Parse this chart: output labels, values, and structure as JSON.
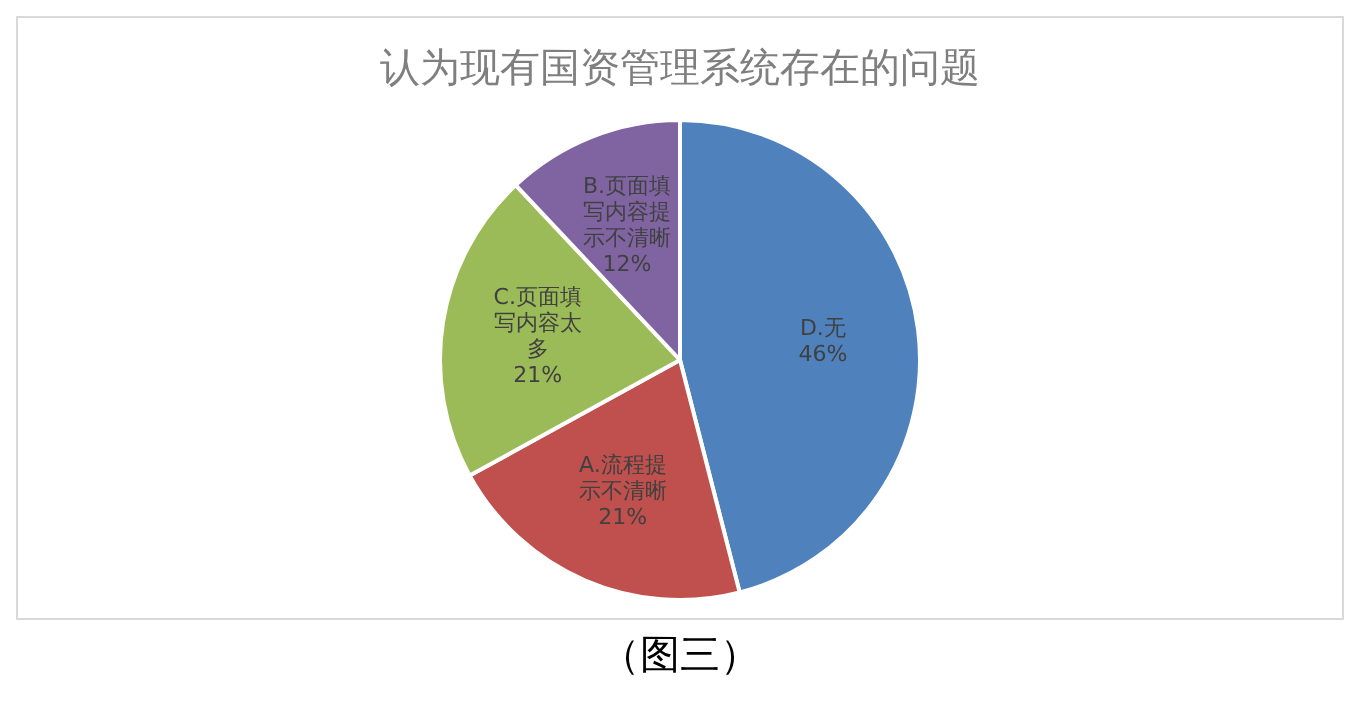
{
  "chart_data": {
    "type": "pie",
    "title": "认为现有国资管理系统存在的问题",
    "categories": [
      "D.无",
      "A.流程提示不清晰",
      "C.页面填写内容太多",
      "B.页面填写内容提示不清晰"
    ],
    "values": [
      46,
      21,
      21,
      12
    ],
    "value_labels": [
      "46%",
      "21%",
      "21%",
      "12%"
    ],
    "colors": [
      "#4f81bd",
      "#c0504d",
      "#9bbb59",
      "#8064a2"
    ],
    "legend": false,
    "annotations": [
      "（图三）"
    ]
  }
}
